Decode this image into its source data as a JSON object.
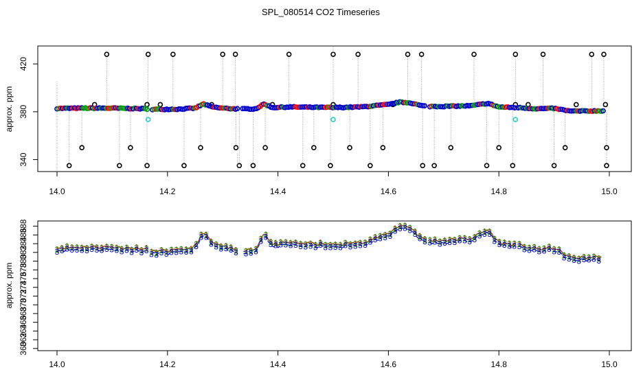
{
  "chart_data": {
    "title": "SPL_080514  CO2 Timeseries",
    "panels": [
      {
        "name": "overview",
        "type": "scatter",
        "ylabel": "approx. ppm",
        "xlim": [
          14.0,
          15.0
        ],
        "ylim": [
          330,
          435
        ],
        "xticks": [
          "14.0",
          "14.2",
          "14.4",
          "14.6",
          "14.8",
          "15.0"
        ],
        "yticks": [
          "340",
          "380",
          "420"
        ],
        "gaps": [
          [
            14.165,
            14.17
          ],
          [
            14.328,
            14.335
          ],
          [
            14.668,
            14.672
          ],
          [
            14.829,
            14.833
          ]
        ],
        "baseline": [
          [
            14.0,
            382.8
          ],
          [
            14.05,
            383.0
          ],
          [
            14.1,
            383.0
          ],
          [
            14.16,
            382.5
          ],
          [
            14.17,
            382.0
          ],
          [
            14.22,
            382.2
          ],
          [
            14.25,
            383.0
          ],
          [
            14.265,
            386.5
          ],
          [
            14.28,
            384.0
          ],
          [
            14.3,
            383.0
          ],
          [
            14.33,
            382.3
          ],
          [
            14.335,
            382.3
          ],
          [
            14.36,
            382.5
          ],
          [
            14.375,
            386.5
          ],
          [
            14.39,
            383.5
          ],
          [
            14.42,
            384.0
          ],
          [
            14.45,
            383.8
          ],
          [
            14.5,
            383.5
          ],
          [
            14.55,
            384.0
          ],
          [
            14.6,
            386.0
          ],
          [
            14.62,
            388.0
          ],
          [
            14.64,
            387.5
          ],
          [
            14.66,
            385.0
          ],
          [
            14.672,
            384.5
          ],
          [
            14.7,
            384.5
          ],
          [
            14.75,
            385.0
          ],
          [
            14.78,
            387.0
          ],
          [
            14.8,
            384.0
          ],
          [
            14.83,
            383.5
          ],
          [
            14.833,
            383.5
          ],
          [
            14.87,
            382.5
          ],
          [
            14.9,
            382.8
          ],
          [
            14.93,
            380.5
          ],
          [
            14.96,
            380.6
          ],
          [
            14.99,
            380.8
          ]
        ],
        "high_outliers": [
          14.09,
          14.165,
          14.21,
          14.3,
          14.323,
          14.42,
          14.5,
          14.545,
          14.635,
          14.66,
          14.755,
          14.83,
          14.88,
          14.968,
          14.99
        ],
        "mid_high_outliers": [
          14.068,
          14.163,
          14.187,
          14.28,
          14.39,
          14.5,
          14.608,
          14.83,
          14.853,
          14.94,
          14.993
        ],
        "low_outliers": [
          14.022,
          14.113,
          14.163,
          14.23,
          14.33,
          14.355,
          14.445,
          14.495,
          14.567,
          14.662,
          14.683,
          14.778,
          14.825,
          14.9,
          14.995
        ],
        "mid_low_outliers": [
          14.045,
          14.133,
          14.26,
          14.324,
          14.377,
          14.465,
          14.53,
          14.59,
          14.713,
          14.8,
          14.92,
          14.995
        ],
        "cyan_points": [
          [
            14.165,
            373.5
          ],
          [
            14.5,
            373.5
          ],
          [
            14.83,
            373.5
          ]
        ]
      },
      {
        "name": "zoom",
        "type": "line",
        "ylabel": "approx. ppm",
        "xlim": [
          14.0,
          15.0
        ],
        "ylim": [
          359.5,
          389.2
        ],
        "xticks": [
          "14.0",
          "14.2",
          "14.4",
          "14.6",
          "14.8",
          "15.0"
        ],
        "yticks": [
          "360",
          "362",
          "364",
          "366",
          "368",
          "370",
          "372",
          "374",
          "376",
          "378",
          "380",
          "382",
          "384",
          "386",
          "388"
        ],
        "symbols": [
          "1",
          "2",
          "3"
        ],
        "series": [
          {
            "name": "1",
            "color": "#ff0000",
            "offset": 0.25
          },
          {
            "name": "2",
            "color": "#00a000",
            "offset": 0.15
          },
          {
            "name": "3",
            "color": "#0000cc",
            "offset": -0.3
          }
        ]
      }
    ]
  }
}
